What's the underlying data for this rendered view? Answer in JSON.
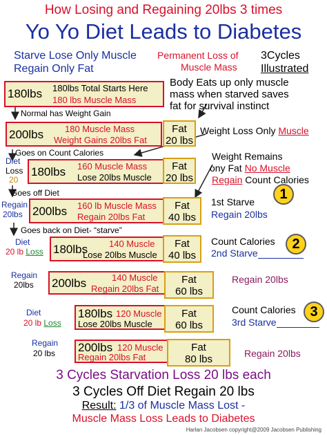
{
  "title1": "How Losing and Regaining 20lbs 3 times",
  "title2": "Yo Yo Diet Leads to Diabetes",
  "intro": {
    "starve_line1": "Starve Lose Only Muscle",
    "starve_line2": "Regain Only Fat",
    "perm_line1": "Permanent Loss of",
    "perm_line2": "Muscle Mass",
    "cycles_line1": "3Cycles",
    "cycles_line2": "Illustrated"
  },
  "notes": {
    "body_eats_1": "Body Eats up only muscle",
    "body_eats_2": "mass when starved saves",
    "body_eats_3": "fat for survival instinct",
    "normal": "Normal has Weight Gain",
    "wl_only": "Weight Loss Only",
    "wl_muscle": "Muscle",
    "goes_on": "Goes on Count Calories",
    "wr_1": "Weight Remains",
    "wr_2a": "ony Fat",
    "wr_2b": "No Muscle",
    "wr_3a": "Regain",
    "wr_3b": "Count Calories",
    "goes_off": "Goes off Diet",
    "goes_back": "Goes back on Diet- “starve”"
  },
  "side_labels": {
    "diet": "Diet",
    "loss": "Loss",
    "twenty": "20",
    "regain": "Regain",
    "twenty_lbs": "20lbs",
    "twenty_lb": "20 lb",
    "twenty_lbs_sp": "20 lbs"
  },
  "rows": {
    "r1": {
      "weight": "180lbs",
      "line1": "180lbs Total Starts Here",
      "line2": "180 lbs Muscle Mass"
    },
    "r2": {
      "weight": "200lbs",
      "line1": "180 Muscle Mass",
      "line2": "Weight Gains 20lbs Fat",
      "fat1": "Fat",
      "fat2": "20 lbs"
    },
    "r3": {
      "weight": "180lbs",
      "line1": "160 Muscle Mass",
      "line2": "Lose 20lbs Muscle",
      "fat1": "Fat",
      "fat2": "20 lbs"
    },
    "r4": {
      "weight": "200lbs",
      "line1": "160 lb Muscle Mass",
      "line2": "Regain 20lbs Fat",
      "fat1": "Fat",
      "fat2": "40 lbs"
    },
    "r5": {
      "weight": "180lbs",
      "line1": "140 Muscle",
      "line2": "Lose 20lbs Muscle",
      "fat1": "Fat",
      "fat2": "40 lbs"
    },
    "r6": {
      "weight": "200lbs",
      "line1": "140 Muscle",
      "line2": "Regain 20lbs Fat",
      "fat1": "Fat",
      "fat2": "60 lbs"
    },
    "r7": {
      "weight": "180lbs",
      "line1": "120 Muscle",
      "line2": "Lose 20lbs Muscle",
      "fat1": "Fat",
      "fat2": "60 lbs"
    },
    "r8": {
      "weight": "200lbs",
      "line1": "120 Muscle",
      "line2": "Regain 20lbs Fat",
      "fat1": "Fat",
      "fat2": "80 lbs"
    }
  },
  "cycles": {
    "c1_num": "1",
    "c1_a": "1st Starve",
    "c1_b": "Regain 20lbs",
    "c2_num": "2",
    "c2_a": "Count Calories",
    "c2_b": "2nd Starve",
    "c2_c": "Regain 20lbs",
    "c3_num": "3",
    "c3_a": "Count Calories",
    "c3_b": "3rd Starve",
    "c3_c": "Regain 20lbs"
  },
  "footer": {
    "line1": "3 Cycles Starvation Loss 20 lbs each",
    "line2": "3 Cycles Off Diet Regain 20 lbs",
    "result_label": "Result:",
    "result_text": "1/3 of Muscle Mass Lost -",
    "line4": "Muscle Mass Loss Leads to Diabetes",
    "credit": "Harlan Jacobsen copyright@2009 Jacobsen Publishing"
  }
}
